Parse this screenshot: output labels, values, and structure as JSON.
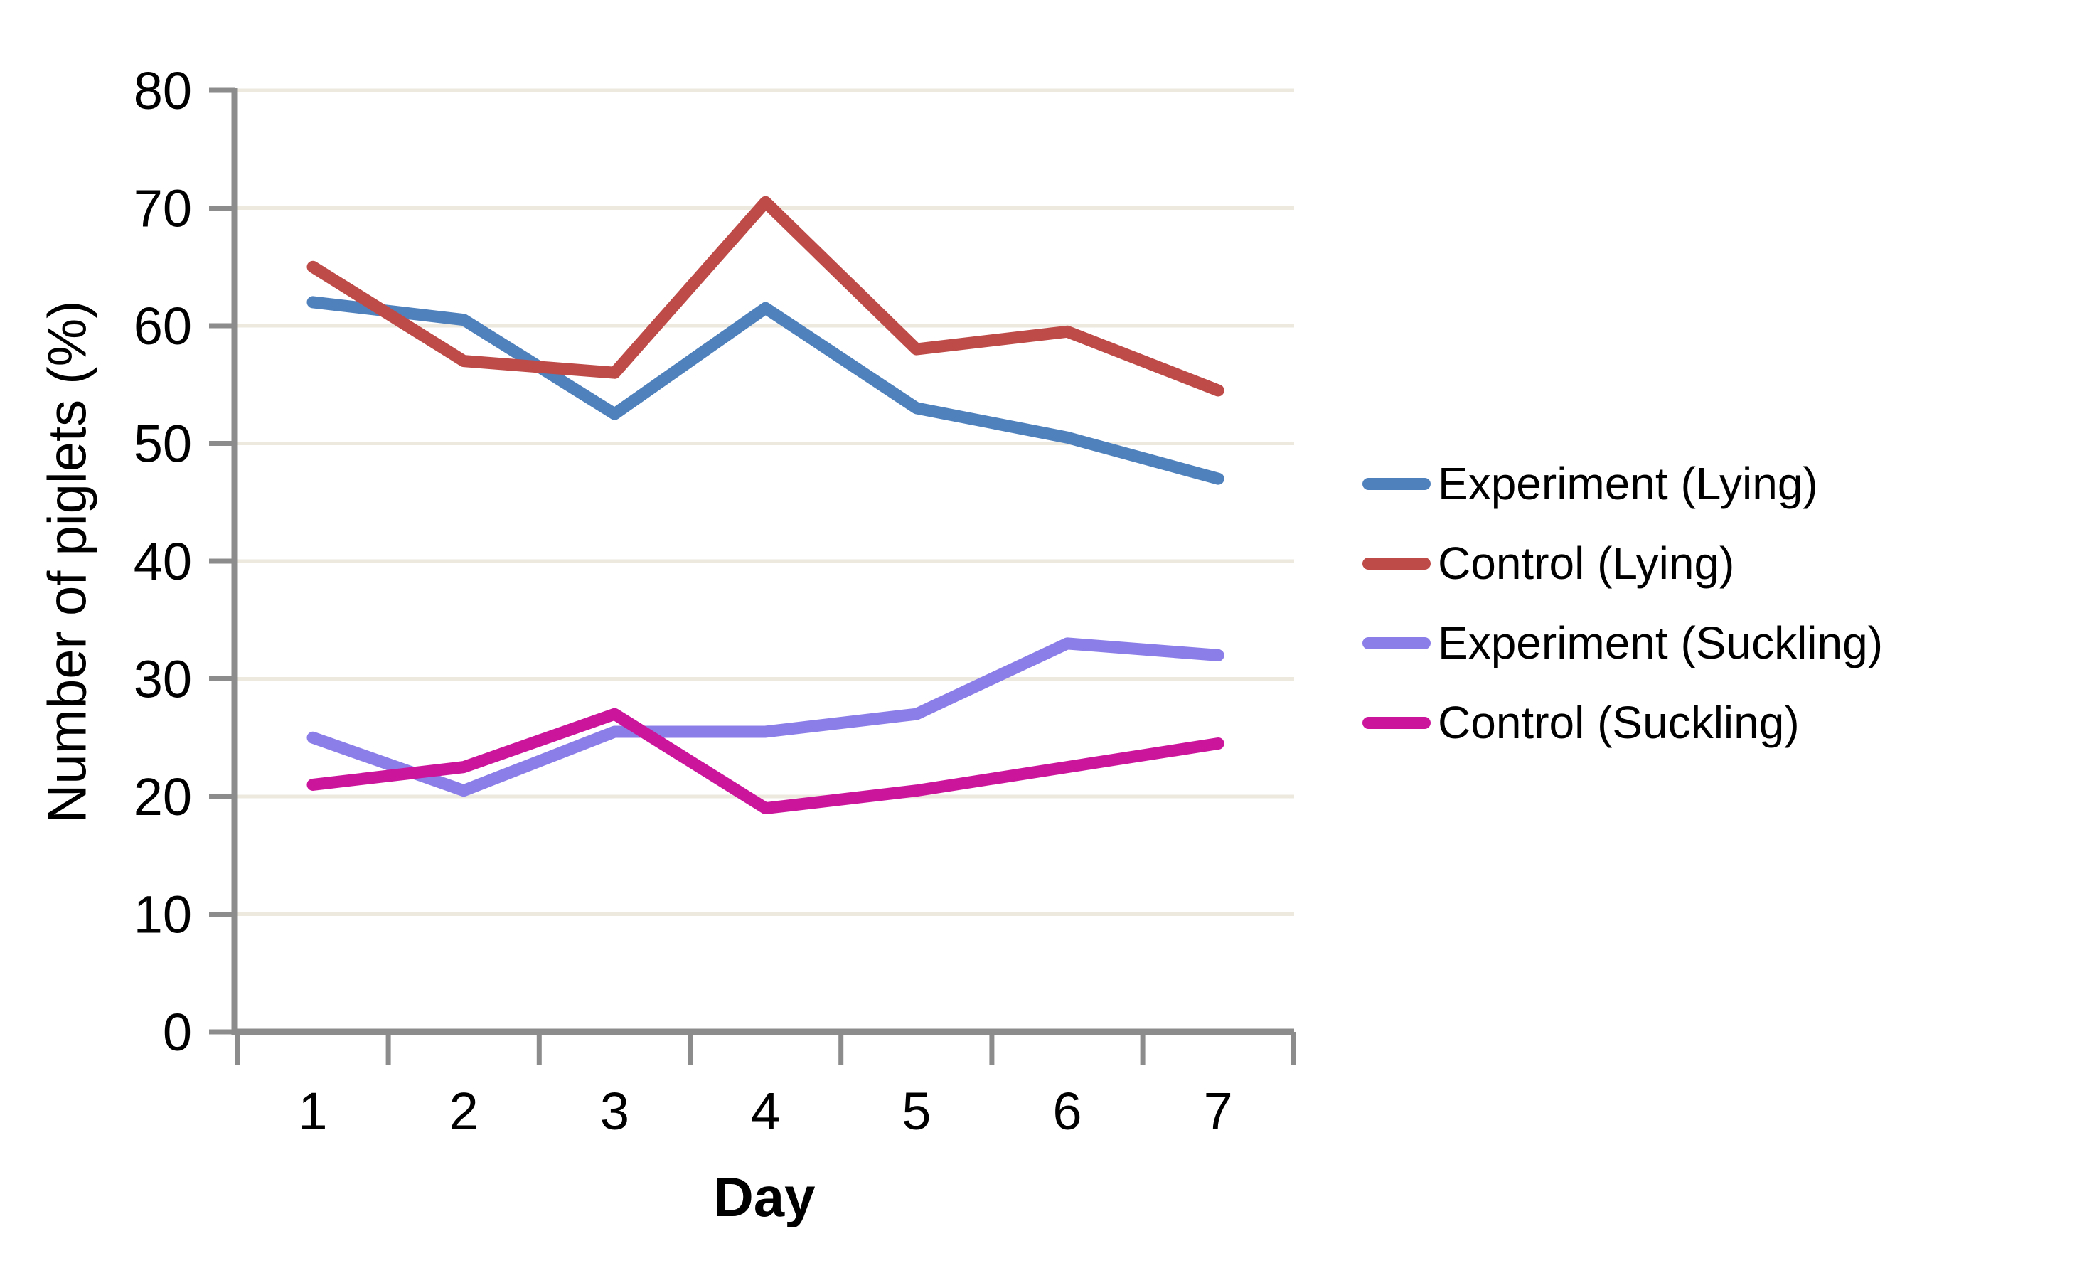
{
  "chart_data": {
    "type": "line",
    "title": "",
    "x": [
      1,
      2,
      3,
      4,
      5,
      6,
      7
    ],
    "xlabel": "Day",
    "ylabel": "Number of piglets (%)",
    "ylim": [
      0,
      80
    ],
    "y_ticks": [
      0,
      10,
      20,
      30,
      40,
      50,
      60,
      70,
      80
    ],
    "grid": true,
    "legend_position": "right",
    "series": [
      {
        "name": "Experiment (Lying)",
        "color": "#4F81BD",
        "values": [
          62,
          60.5,
          52.5,
          61.5,
          53,
          50.5,
          47
        ]
      },
      {
        "name": "Control (Lying)",
        "color": "#BE4B48",
        "values": [
          65,
          57,
          56,
          70.5,
          58,
          59.5,
          54.5
        ]
      },
      {
        "name": "Experiment (Suckling)",
        "color": "#8C7EE8",
        "values": [
          25,
          20.5,
          25.5,
          25.5,
          27,
          33,
          32
        ]
      },
      {
        "name": "Control (Suckling)",
        "color": "#CB169C",
        "values": [
          21,
          22.5,
          27,
          19,
          20.5,
          22.5,
          24.5
        ]
      }
    ]
  },
  "colors": {
    "gridline": "#EDE9DE",
    "axis": "#8C8C8C",
    "background": "#FFFFFF",
    "text": "#000000"
  }
}
